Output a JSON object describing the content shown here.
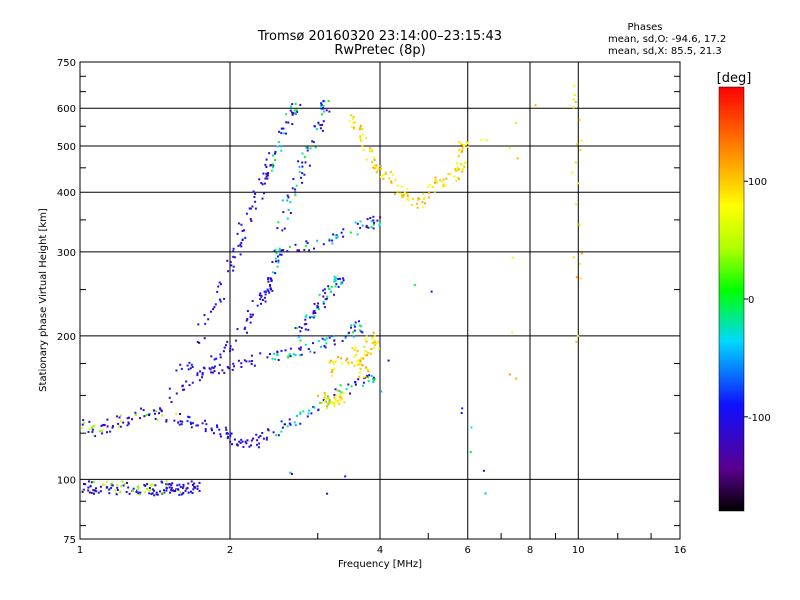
{
  "chart_data": {
    "type": "scatter",
    "title": "Tromsø 20160320 23:14:00–23:15:43",
    "subtitle": "RwPretec (8p)",
    "xlabel": "Frequency [MHz]",
    "ylabel": "Stationary phase Virtual Height [km]",
    "x_scale": "log",
    "y_scale": "log",
    "xlim": [
      1,
      16
    ],
    "ylim": [
      75,
      750
    ],
    "x_ticks": [
      1,
      2,
      4,
      6,
      8,
      10,
      16
    ],
    "x_ticklabels": [
      "1",
      "2",
      "4",
      "6",
      "8",
      "10",
      "16"
    ],
    "y_ticks": [
      75,
      100,
      200,
      300,
      400,
      500,
      600,
      750
    ],
    "y_ticklabels": [
      "75",
      "100",
      "200",
      "300",
      "400",
      "500",
      "600",
      "750"
    ],
    "grid": true,
    "stats": {
      "heading": "Phases",
      "line_o": "mean, sd,O: -94.6, 17.2",
      "line_x": "mean, sd,X: 85.5, 21.3"
    },
    "colorbar": {
      "label": "[deg]",
      "range": [
        -180,
        180
      ],
      "ticks": [
        100,
        0,
        -100
      ],
      "ticklabels": [
        "100",
        "0",
        "-100"
      ]
    },
    "series": [
      {
        "values": [
          [
            1.0,
            97
          ],
          [
            1.04,
            97
          ],
          [
            1.08,
            96
          ],
          [
            1.12,
            97
          ],
          [
            1.17,
            96
          ],
          [
            1.22,
            97
          ],
          [
            1.28,
            96
          ],
          [
            1.33,
            96
          ],
          [
            1.38,
            96
          ],
          [
            1.42,
            95
          ],
          [
            1.47,
            97
          ],
          [
            1.5,
            96
          ],
          [
            1.54,
            96
          ],
          [
            1.58,
            95
          ],
          [
            1.62,
            96
          ],
          [
            1.7,
            97
          ]
        ]
      },
      {
        "values": [
          [
            1.0,
            131
          ],
          [
            1.05,
            128
          ],
          [
            1.1,
            127
          ],
          [
            1.15,
            131
          ],
          [
            1.22,
            133
          ],
          [
            1.3,
            138
          ],
          [
            1.4,
            139
          ],
          [
            1.45,
            136
          ],
          [
            1.6,
            134
          ],
          [
            1.7,
            130
          ],
          [
            1.85,
            129
          ],
          [
            1.95,
            126
          ],
          [
            2.05,
            121
          ],
          [
            2.15,
            120
          ],
          [
            2.25,
            121
          ],
          [
            2.4,
            126
          ],
          [
            2.6,
            131
          ],
          [
            2.8,
            136
          ],
          [
            3.0,
            143
          ],
          [
            3.2,
            150
          ],
          [
            3.5,
            158
          ],
          [
            3.8,
            165
          ]
        ]
      },
      {
        "values": [
          [
            1.55,
            170
          ],
          [
            1.7,
            172
          ],
          [
            1.9,
            171
          ],
          [
            2.1,
            176
          ],
          [
            2.3,
            180
          ],
          [
            2.5,
            184
          ],
          [
            2.7,
            186
          ],
          [
            2.9,
            188
          ],
          [
            3.1,
            194
          ],
          [
            3.3,
            200
          ],
          [
            3.6,
            210
          ]
        ]
      },
      {
        "values": [
          [
            1.5,
            150
          ],
          [
            1.65,
            158
          ],
          [
            1.8,
            170
          ],
          [
            1.95,
            188
          ],
          [
            2.1,
            205
          ],
          [
            2.2,
            225
          ],
          [
            2.3,
            240
          ],
          [
            2.35,
            252
          ],
          [
            2.4,
            260
          ],
          [
            2.45,
            280
          ],
          [
            2.5,
            300
          ],
          [
            2.7,
            306
          ],
          [
            3.0,
            312
          ],
          [
            3.3,
            325
          ],
          [
            3.6,
            340
          ],
          [
            3.9,
            350
          ]
        ]
      },
      {
        "values": [
          [
            1.7,
            195
          ],
          [
            1.85,
            230
          ],
          [
            1.95,
            260
          ],
          [
            2.05,
            300
          ],
          [
            2.1,
            330
          ],
          [
            2.2,
            370
          ],
          [
            2.3,
            410
          ],
          [
            2.35,
            440
          ],
          [
            2.4,
            460
          ],
          [
            2.5,
            500
          ],
          [
            2.6,
            560
          ],
          [
            2.7,
            600
          ]
        ]
      },
      {
        "values": [
          [
            2.5,
            340
          ],
          [
            2.6,
            380
          ],
          [
            2.7,
            420
          ],
          [
            2.8,
            460
          ],
          [
            2.9,
            500
          ],
          [
            3.0,
            560
          ],
          [
            3.1,
            610
          ]
        ]
      },
      {
        "values": [
          [
            2.7,
            200
          ],
          [
            2.8,
            210
          ],
          [
            2.9,
            220
          ],
          [
            3.0,
            230
          ],
          [
            3.1,
            245
          ],
          [
            3.2,
            255
          ],
          [
            3.3,
            260
          ]
        ]
      },
      {
        "values": [
          [
            3.15,
            170
          ],
          [
            3.3,
            178
          ],
          [
            3.5,
            175
          ],
          [
            3.7,
            180
          ],
          [
            3.85,
            190
          ],
          [
            3.95,
            200
          ],
          [
            3.5,
            190
          ],
          [
            3.7,
            168
          ]
        ]
      },
      {
        "values": [
          [
            3.0,
            152
          ],
          [
            3.1,
            148
          ],
          [
            3.2,
            145
          ],
          [
            3.3,
            150
          ]
        ]
      },
      {
        "values": [
          [
            3.5,
            580
          ],
          [
            3.6,
            550
          ],
          [
            3.7,
            520
          ],
          [
            3.8,
            470
          ],
          [
            3.9,
            450
          ],
          [
            4.1,
            440
          ],
          [
            4.3,
            410
          ],
          [
            4.5,
            400
          ],
          [
            4.7,
            380
          ],
          [
            4.9,
            390
          ],
          [
            5.2,
            420
          ],
          [
            5.5,
            430
          ],
          [
            5.7,
            440
          ],
          [
            5.8,
            460
          ],
          [
            5.85,
            500
          ]
        ]
      },
      {
        "values": [
          [
            6.5,
            520
          ],
          [
            6.7,
            530
          ],
          [
            9.8,
            680
          ],
          [
            9.8,
            640
          ],
          [
            9.8,
            600
          ],
          [
            9.9,
            560
          ],
          [
            9.85,
            500
          ],
          [
            9.9,
            450
          ],
          [
            9.85,
            400
          ],
          [
            9.9,
            350
          ],
          [
            9.95,
            300
          ],
          [
            9.8,
            270
          ],
          [
            10.0,
            250
          ],
          [
            9.9,
            195
          ],
          [
            7.3,
            510
          ],
          [
            7.4,
            167
          ]
        ]
      },
      {
        "values": [
          [
            2.45,
            110
          ],
          [
            3.1,
            90
          ],
          [
            3.9,
            125
          ],
          [
            4.6,
            265
          ],
          [
            5.2,
            245
          ],
          [
            6.6,
            91
          ],
          [
            5.8,
            140
          ]
        ]
      }
    ]
  }
}
